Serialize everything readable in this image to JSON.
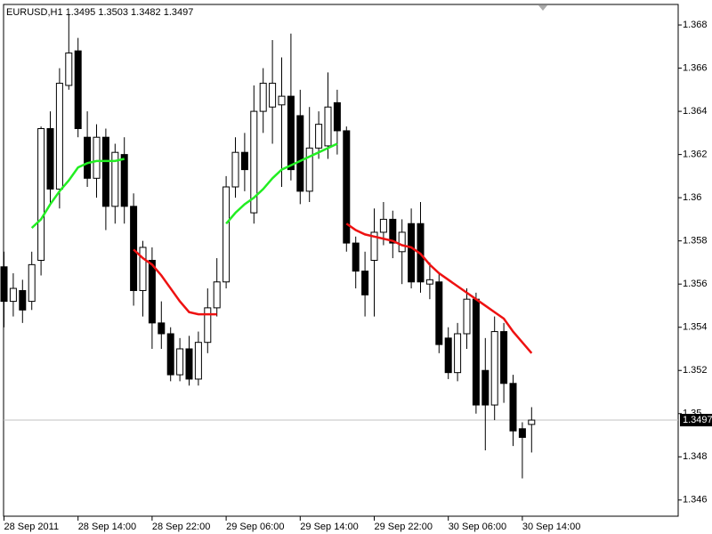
{
  "chart_data": {
    "type": "candlestick",
    "title": "EURUSD,H1  1.3495 1.3503 1.3482 1.3497",
    "categories": [
      "28 Sep 2011",
      null,
      null,
      null,
      null,
      null,
      null,
      null,
      "28 Sep 14:00",
      null,
      null,
      null,
      null,
      null,
      null,
      null,
      "28 Sep 22:00",
      null,
      null,
      null,
      null,
      null,
      null,
      null,
      "29 Sep 06:00",
      null,
      null,
      null,
      null,
      null,
      null,
      null,
      "29 Sep 14:00",
      null,
      null,
      null,
      null,
      null,
      null,
      null,
      "29 Sep 22:00",
      null,
      null,
      null,
      null,
      null,
      null,
      null,
      "30 Sep 06:00",
      null,
      null,
      null,
      null,
      null,
      null,
      null,
      "30 Sep 14:00",
      null
    ],
    "open": [
      1.3568,
      1.3552,
      1.3557,
      1.3552,
      1.3571,
      1.3632,
      1.3604,
      1.3652,
      1.3668,
      1.3628,
      1.3609,
      1.3628,
      1.3596,
      1.362,
      1.3596,
      1.3557,
      1.3571,
      1.3542,
      1.3537,
      1.3518,
      1.353,
      1.3516,
      1.3533,
      1.3549,
      1.3561,
      1.3605,
      1.3621,
      1.3593,
      1.364,
      1.3642,
      1.3643,
      1.3647,
      1.3638,
      1.3603,
      1.3623,
      1.3624,
      1.3644,
      1.3631,
      1.3579,
      1.3566,
      1.3571,
      1.3584,
      1.359,
      1.3575,
      1.3588,
      1.3588,
      1.356,
      1.3561,
      1.3535,
      1.3519,
      1.3537,
      1.3553,
      1.352,
      1.3504,
      1.3538,
      1.3514,
      1.3493,
      1.3495
    ],
    "high": [
      1.3575,
      1.3565,
      1.3562,
      1.3575,
      1.3633,
      1.364,
      1.366,
      1.3685,
      1.3674,
      1.364,
      1.3634,
      1.3632,
      1.3625,
      1.3628,
      1.3602,
      1.358,
      1.3577,
      1.3552,
      1.354,
      1.3535,
      1.3536,
      1.3538,
      1.3558,
      1.3572,
      1.361,
      1.3628,
      1.363,
      1.3652,
      1.366,
      1.3673,
      1.3665,
      1.3676,
      1.365,
      1.3642,
      1.364,
      1.3658,
      1.365,
      1.3633,
      1.3582,
      1.3575,
      1.3595,
      1.3598,
      1.3594,
      1.359,
      1.3595,
      1.3598,
      1.357,
      1.3565,
      1.354,
      1.3542,
      1.3558,
      1.3556,
      1.3535,
      1.3545,
      1.3542,
      1.3518,
      1.3496,
      1.3503
    ],
    "low": [
      1.354,
      1.3545,
      1.3542,
      1.3548,
      1.3564,
      1.3597,
      1.3595,
      1.365,
      1.3628,
      1.3605,
      1.36,
      1.3585,
      1.3588,
      1.3588,
      1.355,
      1.3545,
      1.353,
      1.353,
      1.3515,
      1.3515,
      1.3513,
      1.3513,
      1.3528,
      1.3545,
      1.3558,
      1.36,
      1.3603,
      1.3588,
      1.363,
      1.3625,
      1.3605,
      1.3608,
      1.3597,
      1.3598,
      1.3618,
      1.3618,
      1.362,
      1.3575,
      1.3558,
      1.3545,
      1.3545,
      1.3578,
      1.3572,
      1.356,
      1.3558,
      1.3556,
      1.3553,
      1.3528,
      1.3516,
      1.3515,
      1.353,
      1.35,
      1.3483,
      1.3497,
      1.3505,
      1.3485,
      1.347,
      1.3482
    ],
    "close": [
      1.3552,
      1.3558,
      1.3548,
      1.3569,
      1.3632,
      1.3604,
      1.3653,
      1.3667,
      1.3632,
      1.3609,
      1.3628,
      1.3596,
      1.3621,
      1.3596,
      1.3557,
      1.3577,
      1.3542,
      1.3537,
      1.3518,
      1.353,
      1.3516,
      1.3533,
      1.3549,
      1.3561,
      1.3605,
      1.3621,
      1.3613,
      1.364,
      1.3653,
      1.3653,
      1.3647,
      1.3613,
      1.3603,
      1.3623,
      1.3634,
      1.3642,
      1.3631,
      1.3579,
      1.3566,
      1.3555,
      1.3584,
      1.359,
      1.3579,
      1.3584,
      1.3561,
      1.3561,
      1.3562,
      1.3532,
      1.3519,
      1.3537,
      1.3553,
      1.3504,
      1.3504,
      1.3538,
      1.3514,
      1.3492,
      1.3489,
      1.3497
    ],
    "series": [
      {
        "color": "#22ee22",
        "values": [
          null,
          null,
          null,
          1.3586,
          1.359,
          1.3597,
          1.3603,
          1.3608,
          1.3614,
          1.3616,
          1.3617,
          1.3617,
          1.3617,
          1.3618,
          null,
          null,
          null,
          null,
          null,
          null,
          null,
          null,
          null,
          null,
          1.3588,
          1.3593,
          1.3597,
          1.36,
          1.3604,
          1.3609,
          1.3613,
          1.3615,
          1.3617,
          1.3619,
          1.3621,
          1.3623,
          1.3625,
          null,
          null,
          null,
          null,
          null,
          null,
          null,
          null,
          null,
          null,
          null,
          null,
          null,
          null,
          null,
          null,
          null,
          null,
          null,
          null,
          null
        ]
      },
      {
        "color": "#ee1111",
        "values": [
          null,
          null,
          null,
          null,
          null,
          null,
          null,
          null,
          null,
          null,
          null,
          null,
          null,
          null,
          1.3576,
          1.3572,
          1.3569,
          1.3564,
          1.3558,
          1.3552,
          1.3547,
          1.3546,
          1.3546,
          1.3546,
          null,
          null,
          null,
          null,
          null,
          null,
          null,
          null,
          null,
          null,
          null,
          null,
          null,
          1.3588,
          1.3585,
          1.3583,
          1.3582,
          1.3581,
          1.358,
          1.3578,
          1.3577,
          1.3574,
          1.3569,
          1.3565,
          1.3562,
          1.3559,
          1.3556,
          1.3553,
          1.355,
          1.3547,
          1.3544,
          1.3538,
          1.3533,
          1.3528
        ]
      }
    ],
    "ylim": [
      1.34525,
      1.36895
    ],
    "yticks": [
      1.346,
      1.348,
      1.35,
      1.352,
      1.354,
      1.356,
      1.358,
      1.36,
      1.362,
      1.364,
      1.366,
      1.368
    ]
  }
}
